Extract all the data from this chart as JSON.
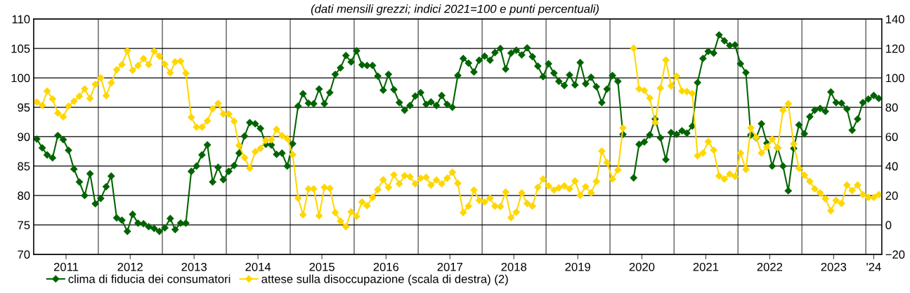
{
  "chart_data": {
    "type": "line",
    "subtitle": "(dati mensili grezzi; indici 2021=100 e punti percentuali)",
    "x": [
      "2011-01-15",
      "2011-02-15",
      "2011-03-15",
      "2011-04-15",
      "2011-05-15",
      "2011-06-15",
      "2011-07-15",
      "2011-08-15",
      "2011-09-15",
      "2011-10-15",
      "2011-11-15",
      "2011-12-15",
      "2012-01-15",
      "2012-02-15",
      "2012-03-15",
      "2012-04-15",
      "2012-05-15",
      "2012-06-15",
      "2012-07-15",
      "2012-08-15",
      "2012-09-15",
      "2012-10-15",
      "2012-11-15",
      "2012-12-15",
      "2013-01-15",
      "2013-02-15",
      "2013-03-15",
      "2013-04-15",
      "2013-05-15",
      "2013-06-15",
      "2013-07-15",
      "2013-08-15",
      "2013-09-15",
      "2013-10-15",
      "2013-11-15",
      "2013-12-15",
      "2014-01-15",
      "2014-02-15",
      "2014-03-15",
      "2014-04-15",
      "2014-05-15",
      "2014-06-15",
      "2014-07-15",
      "2014-08-15",
      "2014-09-15",
      "2014-10-15",
      "2014-11-15",
      "2014-12-15",
      "2015-01-15",
      "2015-02-15",
      "2015-03-15",
      "2015-04-15",
      "2015-05-15",
      "2015-06-15",
      "2015-07-15",
      "2015-08-15",
      "2015-09-15",
      "2015-10-15",
      "2015-11-15",
      "2015-12-15",
      "2016-01-15",
      "2016-02-15",
      "2016-03-15",
      "2016-04-15",
      "2016-05-15",
      "2016-06-15",
      "2016-07-15",
      "2016-08-15",
      "2016-09-15",
      "2016-10-15",
      "2016-11-15",
      "2016-12-15",
      "2017-01-15",
      "2017-02-15",
      "2017-03-15",
      "2017-04-15",
      "2017-05-15",
      "2017-06-15",
      "2017-07-15",
      "2017-08-15",
      "2017-09-15",
      "2017-10-15",
      "2017-11-15",
      "2017-12-15",
      "2018-01-15",
      "2018-02-15",
      "2018-03-15",
      "2018-04-15",
      "2018-05-15",
      "2018-06-15",
      "2018-07-15",
      "2018-08-15",
      "2018-09-15",
      "2018-10-15",
      "2018-11-15",
      "2018-12-15",
      "2019-01-15",
      "2019-02-15",
      "2019-03-15",
      "2019-04-15",
      "2019-05-15",
      "2019-06-15",
      "2019-07-15",
      "2019-08-15",
      "2019-09-15",
      "2019-10-15",
      "2019-11-15",
      "2019-12-15",
      "2020-01-15",
      "2020-02-15",
      "2020-03-15",
      "2020-04-15",
      "2020-05-15",
      "2020-06-15",
      "2020-07-15",
      "2020-08-15",
      "2020-09-15",
      "2020-10-15",
      "2020-11-15",
      "2020-12-15",
      "2021-01-15",
      "2021-02-15",
      "2021-03-15",
      "2021-04-15",
      "2021-05-15",
      "2021-06-15",
      "2021-07-15",
      "2021-08-15",
      "2021-09-15",
      "2021-10-15",
      "2021-11-15",
      "2021-12-15",
      "2022-01-15",
      "2022-02-15",
      "2022-03-15",
      "2022-04-15",
      "2022-05-15",
      "2022-06-15",
      "2022-07-15",
      "2022-08-15",
      "2022-09-15",
      "2022-10-15",
      "2022-11-15",
      "2022-12-15",
      "2023-01-15",
      "2023-02-15",
      "2023-03-15",
      "2023-04-15",
      "2023-05-15",
      "2023-06-15",
      "2023-07-15",
      "2023-08-15",
      "2023-09-15",
      "2023-10-15",
      "2023-11-15",
      "2023-12-15",
      "2024-01-15",
      "2024-02-15",
      "2024-03-15"
    ],
    "series": [
      {
        "name": "clima di fiducia dei consumatori",
        "color": "#006400",
        "values": [
          89.6,
          88.1,
          86.9,
          86.4,
          90.2,
          89.5,
          87.7,
          84.5,
          82.3,
          80.0,
          83.7,
          78.6,
          79.5,
          81.5,
          83.3,
          76.2,
          75.8,
          73.9,
          76.8,
          75.3,
          75.2,
          74.7,
          74.4,
          73.9,
          74.5,
          76.1,
          74.2,
          75.3,
          75.3,
          84.1,
          85.0,
          86.9,
          88.6,
          82.3,
          84.8,
          82.7,
          84.1,
          85.1,
          87.2,
          90.1,
          92.4,
          92.2,
          91.4,
          88.7,
          88.6,
          87.0,
          87.2,
          85.0,
          88.8,
          95.2,
          97.3,
          95.7,
          95.6,
          98.1,
          95.6,
          97.5,
          100.6,
          101.7,
          103.8,
          102.7,
          104.6,
          102.2,
          102.1,
          102.1,
          100.3,
          97.9,
          100.6,
          98.0,
          95.8,
          94.5,
          95.3,
          96.9,
          97.5,
          95.5,
          95.9,
          95.3,
          97.0,
          95.5,
          95.0,
          100.4,
          103.3,
          102.5,
          101.0,
          103.0,
          103.7,
          103.0,
          104.3,
          105.0,
          101.5,
          104.2,
          104.7,
          103.9,
          105.1,
          103.6,
          102.0,
          100.2,
          102.4,
          100.8,
          99.4,
          98.7,
          100.5,
          98.8,
          102.6,
          99.0,
          100.1,
          98.5,
          95.8,
          98.1,
          100.4,
          99.4,
          90.4,
          null,
          83.0,
          88.7,
          89.1,
          90.3,
          93.0,
          89.8,
          86.1,
          90.7,
          90.4,
          91.0,
          90.6,
          91.8,
          99.2,
          103.3,
          104.5,
          104.2,
          107.3,
          106.3,
          105.5,
          105.6,
          102.4,
          100.9,
          90.3,
          89.8,
          92.2,
          88.9,
          85.0,
          88.1,
          85.0,
          80.8,
          88.0,
          92.0,
          90.5,
          93.4,
          94.5,
          94.8,
          94.3,
          97.6,
          95.8,
          95.7,
          94.7,
          91.1,
          93.0,
          95.8,
          96.4,
          97.0,
          96.5
        ]
      },
      {
        "name": "attese sulla disoccupazione (scala di destra) (2)",
        "color": "#ffd700",
        "axis": "y2",
        "values": [
          83.5,
          81.3,
          91.0,
          85.7,
          76.0,
          73.5,
          80.8,
          84.1,
          87.5,
          92.5,
          86.0,
          95.6,
          100.0,
          87.9,
          96.6,
          105.5,
          109.0,
          118.4,
          105.1,
          108.4,
          113.1,
          109.0,
          118.2,
          114.8,
          109.3,
          103.4,
          110.9,
          111.4,
          103.1,
          73.2,
          66.5,
          66.5,
          70.7,
          79.0,
          82.6,
          75.4,
          75.4,
          70.4,
          54.0,
          45.8,
          38.5,
          49.8,
          52.0,
          57.5,
          57.9,
          65.0,
          60.7,
          58.7,
          47.8,
          18.2,
          6.9,
          24.5,
          24.5,
          6.2,
          25.5,
          24.9,
          8.4,
          2.6,
          -1.2,
          8.9,
          5.8,
          15.6,
          13.1,
          18.7,
          24.0,
          30.7,
          25.5,
          34.1,
          28.0,
          33.5,
          32.7,
          28.0,
          31.8,
          32.4,
          27.1,
          30.5,
          28.0,
          31.8,
          35.8,
          28.3,
          8.4,
          12.8,
          23.7,
          16.7,
          15.6,
          18.2,
          12.8,
          12.5,
          22.4,
          5.0,
          8.7,
          21.8,
          14.6,
          12.8,
          25.5,
          31.2,
          26.5,
          23.7,
          25.2,
          26.5,
          24.5,
          29.9,
          20.2,
          26.0,
          21.8,
          29.6,
          50.2,
          42.4,
          31.2,
          37.4,
          66.0,
          null,
          120.2,
          92.5,
          91.4,
          86.3,
          69.6,
          93.0,
          112.1,
          94.5,
          101.2,
          91.0,
          90.7,
          89.4,
          47.0,
          48.9,
          56.7,
          50.9,
          33.3,
          31.2,
          34.6,
          33.0,
          48.9,
          37.7,
          66.0,
          59.5,
          48.9,
          53.0,
          58.4,
          52.5,
          77.9,
          82.4,
          55.1,
          38.5,
          33.8,
          29.6,
          24.5,
          21.8,
          17.8,
          9.7,
          16.7,
          14.6,
          27.1,
          23.4,
          27.1,
          20.6,
          18.7,
          18.7,
          20.6
        ]
      }
    ],
    "xlim": [
      "2010-12-28",
      "2024-04-01"
    ],
    "xticks": [
      {
        "value": "2012-01-01",
        "label": null
      },
      {
        "value": "2013-01-01",
        "label": null
      },
      {
        "value": "2014-01-01",
        "label": null
      },
      {
        "value": "2015-01-01",
        "label": null
      },
      {
        "value": "2016-01-01",
        "label": null
      },
      {
        "value": "2017-01-01",
        "label": null
      },
      {
        "value": "2018-01-01",
        "label": null
      },
      {
        "value": "2019-01-01",
        "label": null
      },
      {
        "value": "2020-01-01",
        "label": null
      },
      {
        "value": "2021-01-01",
        "label": null
      },
      {
        "value": "2022-01-01",
        "label": null
      },
      {
        "value": "2023-01-01",
        "label": null
      },
      {
        "value": "2024-01-01",
        "label": null
      },
      {
        "value": "2011-07-01",
        "label": "2011"
      },
      {
        "value": "2012-07-01",
        "label": "2012"
      },
      {
        "value": "2013-07-01",
        "label": "2013"
      },
      {
        "value": "2014-07-01",
        "label": "2014"
      },
      {
        "value": "2015-07-01",
        "label": "2015"
      },
      {
        "value": "2016-07-01",
        "label": "2016"
      },
      {
        "value": "2017-07-01",
        "label": "2017"
      },
      {
        "value": "2018-07-01",
        "label": "2018"
      },
      {
        "value": "2019-07-01",
        "label": "2019"
      },
      {
        "value": "2020-07-01",
        "label": "2020"
      },
      {
        "value": "2021-07-01",
        "label": "2021"
      },
      {
        "value": "2022-07-01",
        "label": "2022"
      },
      {
        "value": "2023-07-01",
        "label": "2023"
      },
      {
        "value": "2024-02-15",
        "label": "'24"
      }
    ],
    "ylim": [
      70,
      110
    ],
    "yticks": [
      70,
      75,
      80,
      85,
      90,
      95,
      100,
      105,
      110
    ],
    "y2lim": [
      -20,
      140
    ],
    "y2ticks": [
      {
        "value": -20,
        "label": "−20"
      },
      0,
      20,
      40,
      60,
      80,
      100,
      120,
      140
    ],
    "grid": true,
    "legend": "bottom left",
    "marker": "diamond",
    "line_style": "solid"
  }
}
